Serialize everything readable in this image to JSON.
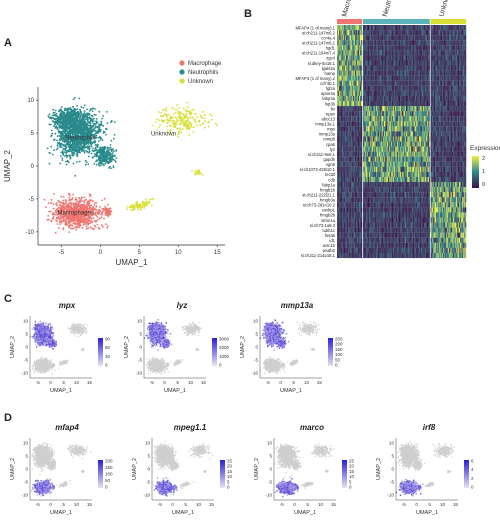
{
  "panels": {
    "a": {
      "label": "A",
      "xlabel": "UMAP_1",
      "ylabel": "UMAP_2",
      "x_ticks": [
        "-5",
        "0",
        "5",
        "10",
        "15"
      ],
      "y_ticks": [
        "-10",
        "-5",
        "0",
        "5",
        "10"
      ],
      "cluster_labels": [
        "Neutrophils",
        "Macrophages",
        "Unknown"
      ],
      "legend": [
        {
          "name": "Macrophage",
          "color": "#f07470"
        },
        {
          "name": "Neutrophils",
          "color": "#2a8a8c"
        },
        {
          "name": "Unknown",
          "color": "#d8e035"
        }
      ]
    },
    "b": {
      "label": "B",
      "groups": [
        "Macrophage",
        "Neutrophils",
        "Unknown"
      ],
      "group_colors": [
        "#f07470",
        "#59b3bb",
        "#d8e035"
      ],
      "legend_title": "Expression",
      "legend_ticks": [
        "2",
        "1",
        "0"
      ],
      "genes": [
        "MFAP4 (1 of many).1",
        "si:ch211-147m6.2",
        "ccr4a.4",
        "si:ch211-147m6.1",
        "hgd1",
        "si:ch211-194m7.4",
        "zgc4",
        "si:dkey-5n18.1",
        "lgals2a",
        "hamp",
        "MFAP4 (1 of many).2",
        "cd74b.1",
        "fgl2a",
        "apoe3a",
        "fabp3a",
        "lsp36",
        "lsr",
        "npsn",
        "abcc13",
        "mmp13a.1",
        "mpx",
        "mmp13a",
        "mmp9",
        "cpa5",
        "lyz",
        "si:ch211-9e6.1",
        "gapdh",
        "ngn5",
        "si:ch1073-429i10.1",
        "lect2l",
        "cd9",
        "fabp1a",
        "hmgb1b",
        "si:ch211-222l21.1",
        "hmgb3a",
        "si:ch73-281n10.2",
        "ranbp1",
        "hmgb2b",
        "stmn1a",
        "si:ch73-1a9.3",
        "tubb1c",
        "fosab",
        "id1",
        "actc1b",
        "pvalb2",
        "si:ch211-214p16.1"
      ]
    },
    "c": {
      "label": "C",
      "genes": [
        {
          "name": "mpx",
          "ticks": [
            "90",
            "60",
            "30",
            "0"
          ]
        },
        {
          "name": "lyz",
          "ticks": [
            "3000",
            "2000",
            "1000",
            "0"
          ]
        },
        {
          "name": "mmp13a",
          "ticks": [
            "250",
            "200",
            "150",
            "100",
            "50",
            "0"
          ]
        }
      ]
    },
    "d": {
      "label": "D",
      "genes": [
        {
          "name": "mfap4",
          "ticks": [
            "200",
            "150",
            "100",
            "50",
            "0"
          ]
        },
        {
          "name": "mpeg1.1",
          "ticks": [
            "25",
            "20",
            "15",
            "10",
            "5",
            "0"
          ]
        },
        {
          "name": "marco",
          "ticks": [
            "25",
            "20",
            "15",
            "10",
            "5",
            "0"
          ]
        },
        {
          "name": "irf8",
          "ticks": [
            "6",
            "4",
            "2",
            "0"
          ]
        }
      ]
    },
    "mini": {
      "xlabel": "UMAP_1",
      "ylabel": "UMAP_2",
      "x_ticks": [
        "-5",
        "0",
        "5",
        "10",
        "15"
      ],
      "y_ticks": [
        "-10",
        "-5",
        "0",
        "5",
        "10"
      ]
    }
  },
  "colors": {
    "macrophage": "#f07470",
    "neutrophils": "#2a8a8c",
    "unknown": "#d8e035",
    "grey_cells": "#cfcfcf",
    "expr_high": "#2a1fd6",
    "heat_low": "#3a1148",
    "heat_mid": "#2a8a8c",
    "heat_high": "#f2f03a"
  }
}
